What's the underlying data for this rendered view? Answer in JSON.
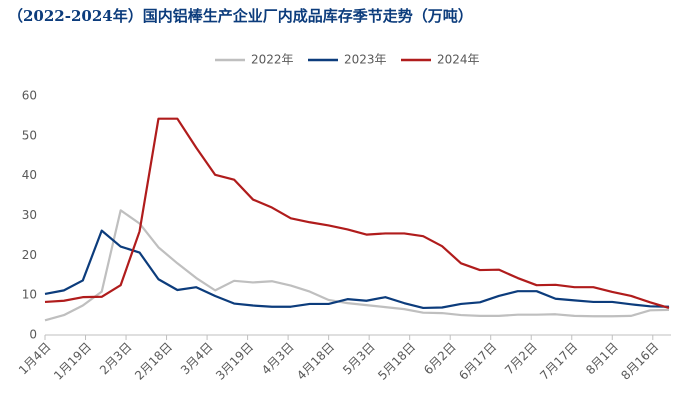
{
  "chart_data": {
    "type": "line",
    "title": "（2022-2024年）国内铝棒生产企业厂内成品库存季节走势（万吨）",
    "x": [
      0,
      7,
      14,
      21,
      28,
      35,
      42,
      49,
      56,
      63,
      70,
      77,
      84,
      91,
      98,
      105,
      112,
      119,
      126,
      133,
      140,
      147,
      154,
      161,
      168,
      175,
      182,
      189,
      196,
      203,
      210,
      217,
      224,
      231
    ],
    "xlim": [
      0,
      231
    ],
    "xticks": [
      {
        "value": 0,
        "label": "1月4日"
      },
      {
        "value": 15,
        "label": "1月19日"
      },
      {
        "value": 30,
        "label": "2月3日"
      },
      {
        "value": 45,
        "label": "2月18日"
      },
      {
        "value": 60,
        "label": "3月4日"
      },
      {
        "value": 75,
        "label": "3月19日"
      },
      {
        "value": 90,
        "label": "4月3日"
      },
      {
        "value": 105,
        "label": "4月18日"
      },
      {
        "value": 120,
        "label": "5月3日"
      },
      {
        "value": 135,
        "label": "5月18日"
      },
      {
        "value": 150,
        "label": "6月2日"
      },
      {
        "value": 165,
        "label": "6月17日"
      },
      {
        "value": 180,
        "label": "7月2日"
      },
      {
        "value": 195,
        "label": "7月17日"
      },
      {
        "value": 210,
        "label": "8月1日"
      },
      {
        "value": 225,
        "label": "8月16日"
      }
    ],
    "ylim": [
      0,
      60
    ],
    "yticks": [
      0,
      10,
      20,
      30,
      40,
      50,
      60
    ],
    "series": [
      {
        "name": "2022年",
        "color": "#bfbfbf",
        "values": [
          3.7,
          5,
          7.4,
          10.9,
          31.3,
          28,
          22,
          18,
          14.3,
          11.2,
          13.6,
          13.2,
          13.5,
          12.4,
          10.9,
          8.8,
          8,
          7.5,
          7,
          6.5,
          5.6,
          5.5,
          5,
          4.8,
          4.8,
          5.1,
          5.1,
          5.2,
          4.8,
          4.7,
          4.7,
          4.8,
          6.2,
          6.3
        ]
      },
      {
        "name": "2023年",
        "color": "#0c3c7c",
        "values": [
          10.3,
          11.2,
          13.7,
          26.2,
          22.2,
          20.7,
          14,
          11.3,
          12,
          9.8,
          7.9,
          7.4,
          7.1,
          7.1,
          7.8,
          7.8,
          9,
          8.6,
          9.5,
          8,
          6.8,
          6.9,
          7.8,
          8.2,
          9.8,
          11,
          11,
          9.1,
          8.7,
          8.3,
          8.3,
          7.7,
          7.2,
          7.1
        ]
      },
      {
        "name": "2024年",
        "color": "#b01c1c",
        "values": [
          8.3,
          8.6,
          9.5,
          9.6,
          12.5,
          26,
          54.3,
          54.3,
          47,
          40.2,
          39,
          34,
          32,
          29.3,
          28.3,
          27.5,
          26.5,
          25.2,
          25.5,
          25.5,
          24.8,
          22.3,
          18,
          16.3,
          16.4,
          14.3,
          12.5,
          12.6,
          12,
          12,
          10.8,
          9.8,
          8.2,
          6.8
        ]
      }
    ]
  }
}
